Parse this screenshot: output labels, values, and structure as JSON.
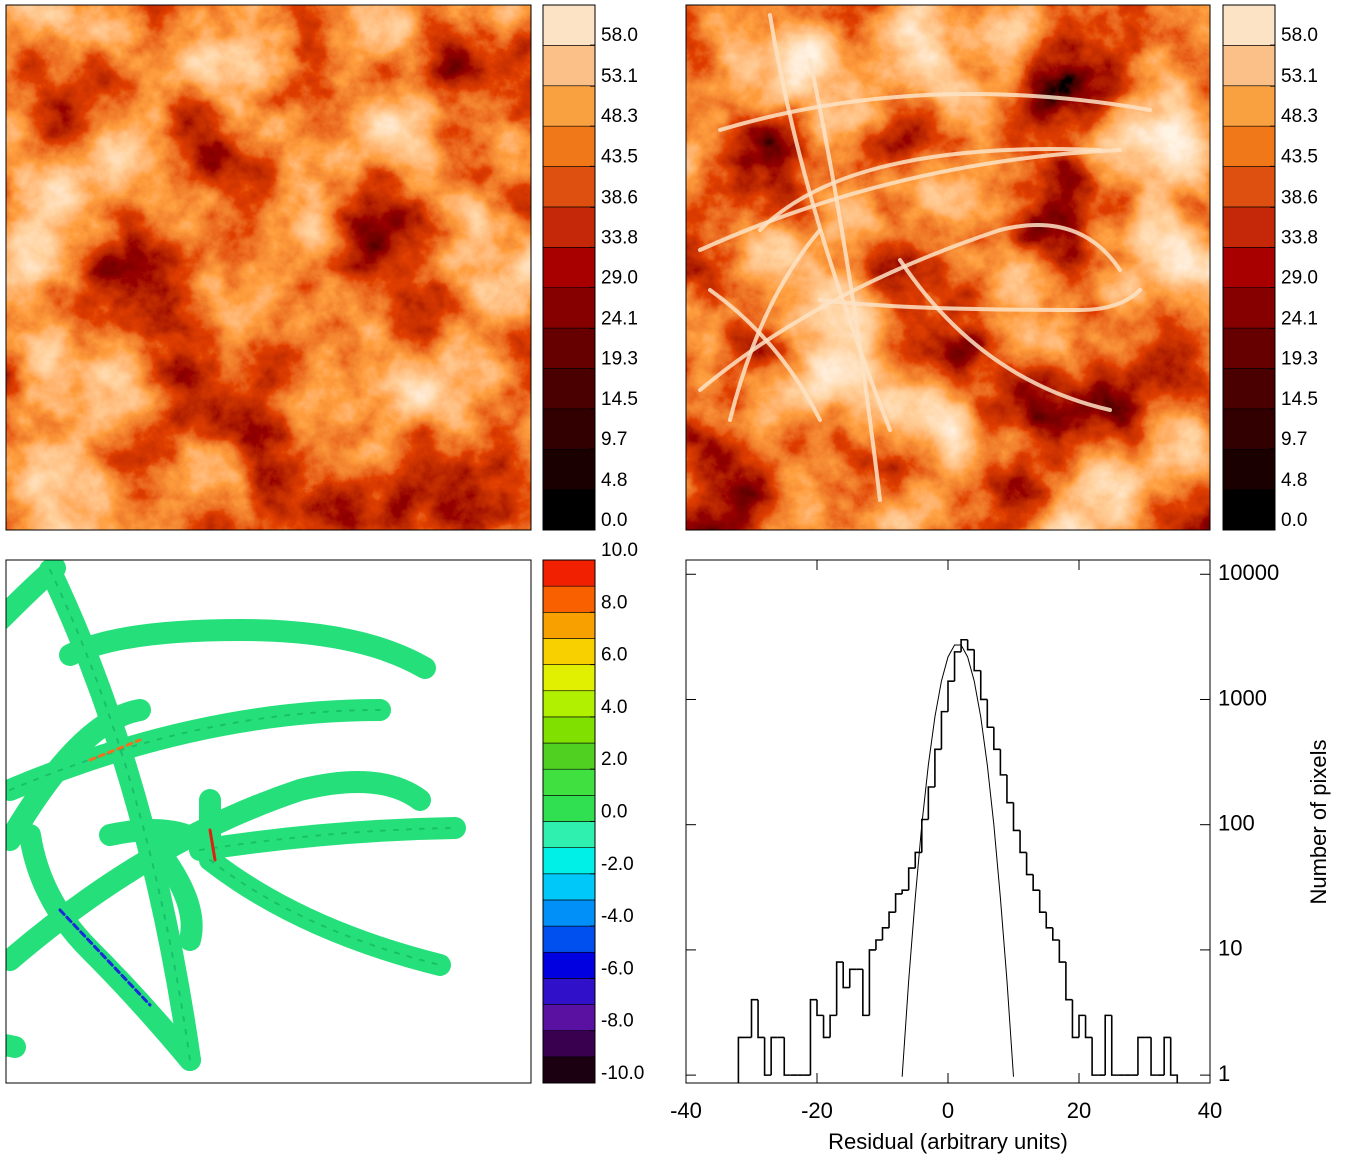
{
  "chart_data": [
    {
      "type": "image",
      "colorbar": {
        "clim": [
          0,
          62.8
        ],
        "colors": [
          "#000000",
          "#1a0000",
          "#320000",
          "#4a0000",
          "#660000",
          "#860000",
          "#a80000",
          "#c42808",
          "#dd5010",
          "#f07818",
          "#f9a040",
          "#fbbf88",
          "#fde3c6"
        ],
        "ticks": [
          {
            "value": 0,
            "label": "0.0"
          },
          {
            "value": 4.8,
            "label": "4.8"
          },
          {
            "value": 9.7,
            "label": "9.7"
          },
          {
            "value": 14.5,
            "label": "14.5"
          },
          {
            "value": 19.3,
            "label": "19.3"
          },
          {
            "value": 24.1,
            "label": "24.1"
          },
          {
            "value": 29,
            "label": "29.0"
          },
          {
            "value": 33.8,
            "label": "33.8"
          },
          {
            "value": 38.6,
            "label": "38.6"
          },
          {
            "value": 43.5,
            "label": "43.5"
          },
          {
            "value": 48.3,
            "label": "48.3"
          },
          {
            "value": 53.1,
            "label": "53.1"
          },
          {
            "value": 58,
            "label": "58.0"
          }
        ]
      }
    },
    {
      "type": "image",
      "colorbar": {
        "clim": [
          0,
          62.8
        ],
        "colors": [
          "#000000",
          "#1a0000",
          "#320000",
          "#4a0000",
          "#660000",
          "#860000",
          "#a80000",
          "#c42808",
          "#dd5010",
          "#f07818",
          "#f9a040",
          "#fbbf88",
          "#fde3c6"
        ],
        "ticks": [
          {
            "value": 0,
            "label": "0.0"
          },
          {
            "value": 4.8,
            "label": "4.8"
          },
          {
            "value": 9.7,
            "label": "9.7"
          },
          {
            "value": 14.5,
            "label": "14.5"
          },
          {
            "value": 19.3,
            "label": "19.3"
          },
          {
            "value": 24.1,
            "label": "24.1"
          },
          {
            "value": 29,
            "label": "29.0"
          },
          {
            "value": 33.8,
            "label": "33.8"
          },
          {
            "value": 38.6,
            "label": "38.6"
          },
          {
            "value": 43.5,
            "label": "43.5"
          },
          {
            "value": 48.3,
            "label": "48.3"
          },
          {
            "value": 53.1,
            "label": "53.1"
          },
          {
            "value": 58,
            "label": "58.0"
          }
        ]
      }
    },
    {
      "type": "residual-map",
      "colorbar": {
        "clim": [
          -10,
          10
        ],
        "colors": [
          "#1a0010",
          "#3a0050",
          "#5a10a0",
          "#3010c8",
          "#0000e0",
          "#0050f0",
          "#0090f8",
          "#00c8f8",
          "#00f0e8",
          "#30f0b0",
          "#30e050",
          "#40e040",
          "#50d020",
          "#80e000",
          "#b0f000",
          "#e0f000",
          "#f8d000",
          "#f8a000",
          "#f86000",
          "#f02000"
        ],
        "ticks": [
          {
            "value": -10,
            "label": "-10.0"
          },
          {
            "value": -8,
            "label": "-8.0"
          },
          {
            "value": -6,
            "label": "-6.0"
          },
          {
            "value": -4,
            "label": "-4.0"
          },
          {
            "value": -2,
            "label": "-2.0"
          },
          {
            "value": 0,
            "label": "0.0"
          },
          {
            "value": 2,
            "label": "2.0"
          },
          {
            "value": 4,
            "label": "4.0"
          },
          {
            "value": 6,
            "label": "6.0"
          },
          {
            "value": 8,
            "label": "8.0"
          },
          {
            "value": 10,
            "label": "10.0"
          }
        ]
      }
    },
    {
      "type": "histogram",
      "x_label": "Residual (arbitrary units)",
      "y_label": "Number of pixels",
      "bins": [
        -32,
        -31,
        -30,
        -29,
        -28,
        -27,
        -26,
        -25,
        -24,
        -23,
        -22,
        -21,
        -20,
        -19,
        -18,
        -17,
        -16,
        -15,
        -14,
        -13,
        -12,
        -11,
        -10,
        -9,
        -8,
        -7,
        -6,
        -5,
        -4,
        -3,
        -2,
        -1,
        0,
        1,
        2,
        3,
        4,
        5,
        6,
        7,
        8,
        9,
        10,
        11,
        12,
        13,
        14,
        15,
        16,
        17,
        18,
        19,
        20,
        21,
        22,
        23,
        24,
        25,
        26,
        27,
        28,
        29,
        30,
        31,
        32,
        33,
        34,
        35
      ],
      "counts": [
        2,
        2,
        4,
        2,
        1,
        2,
        2,
        1,
        1,
        1,
        1,
        4,
        3,
        2,
        3,
        8,
        5,
        7,
        7,
        3,
        10,
        12,
        15,
        20,
        28,
        30,
        45,
        60,
        110,
        200,
        400,
        800,
        1400,
        2400,
        3000,
        2500,
        1700,
        1000,
        600,
        400,
        250,
        150,
        90,
        60,
        40,
        30,
        20,
        15,
        12,
        8,
        4,
        2,
        3,
        2,
        1,
        1,
        3,
        1,
        1,
        1,
        1,
        2,
        2,
        1,
        1,
        2,
        1
      ],
      "fit": {
        "x": [
          -7,
          -6,
          -5,
          -4,
          -3,
          -2,
          -1,
          0,
          1,
          2,
          3,
          4,
          5,
          6,
          7,
          8,
          9,
          10
        ],
        "values": [
          0.97,
          5.7,
          26,
          100,
          300,
          725,
          1406,
          2185,
          2724,
          2724,
          2185,
          1406,
          725,
          300,
          100,
          26,
          5.7,
          0.97
        ]
      },
      "color": "#000000",
      "xlim": [
        -40,
        40
      ],
      "xticks": [
        -40,
        -20,
        0,
        20,
        40
      ],
      "ylim": [
        0.865,
        13000
      ],
      "yticks": [
        1,
        10,
        100,
        1000,
        10000
      ],
      "log_y": true
    }
  ]
}
